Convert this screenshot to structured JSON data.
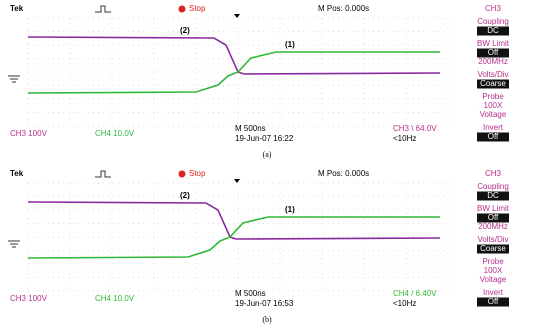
{
  "panels": [
    {
      "header": {
        "brand": "Tek",
        "state": "Stop",
        "position": "M Pos: 0.000s"
      },
      "channel": "CH3",
      "menu": [
        {
          "title": "Coupling",
          "values": [
            "DC"
          ]
        },
        {
          "title": "BW Limit",
          "values": [
            "Off",
            "200MHz"
          ]
        },
        {
          "title": "Volts/Div",
          "values": [
            "Coarse"
          ]
        },
        {
          "title": "Probe",
          "values": [
            "100X",
            "Voltage"
          ]
        },
        {
          "title": "Invert",
          "values": [
            "Off"
          ]
        }
      ],
      "footer": {
        "ch3": "CH3 100V",
        "ch4": "CH4 10.0V",
        "timebase": "M 500ns",
        "timestamp": "19-Jun-07 16:22",
        "trigger": "CH3 \\ 64.0V",
        "frequency": "<10Hz"
      },
      "trace_labels": [
        "(1)",
        "(2)"
      ],
      "caption": "(a)"
    },
    {
      "header": {
        "brand": "Tek",
        "state": "Stop",
        "position": "M Pos: 0.000s"
      },
      "channel": "CH3",
      "menu": [
        {
          "title": "Coupling",
          "values": [
            "DC"
          ]
        },
        {
          "title": "BW Limit",
          "values": [
            "Off",
            "200MHz"
          ]
        },
        {
          "title": "Volts/Div",
          "values": [
            "Coarse"
          ]
        },
        {
          "title": "Probe",
          "values": [
            "100X",
            "Voltage"
          ]
        },
        {
          "title": "Invert",
          "values": [
            "Off"
          ]
        }
      ],
      "footer": {
        "ch3": "CH3 100V",
        "ch4": "CH4 10.0V",
        "timebase": "M 500ns",
        "timestamp": "19-Jun-07 16:53",
        "trigger": "CH4 / 6.40V",
        "frequency": "<10Hz"
      },
      "trace_labels": [
        "(1)",
        "(2)"
      ],
      "caption": "(b)"
    }
  ]
}
